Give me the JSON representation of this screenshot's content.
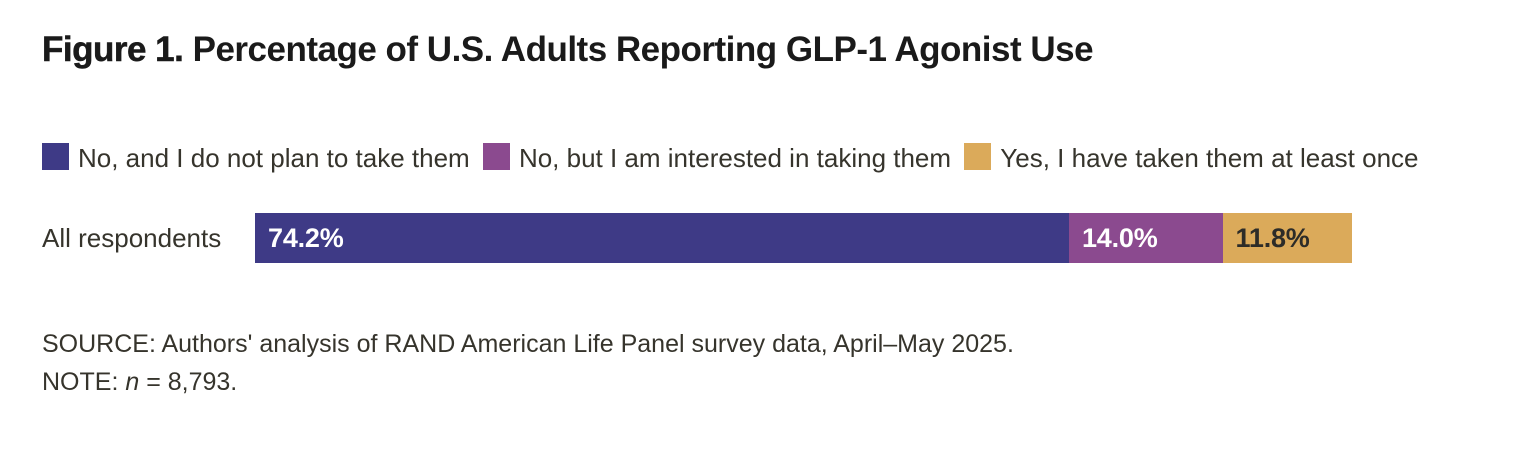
{
  "figure": {
    "label": "Figure 1.",
    "title": "Percentage of U.S. Adults Reporting GLP-1 Agonist Use"
  },
  "legend": [
    {
      "label": "No, and I do not plan to take them",
      "color": "#3e3a86"
    },
    {
      "label": "No, but I am interested in taking them",
      "color": "#8b4a8f"
    },
    {
      "label": "Yes, I have taken them at least once",
      "color": "#dbaa5a"
    }
  ],
  "chart_data": {
    "type": "bar",
    "orientation": "horizontal",
    "stacked": true,
    "title": "Figure 1. Percentage of U.S. Adults Reporting GLP-1 Agonist Use",
    "categories": [
      "All respondents"
    ],
    "series": [
      {
        "name": "No, and I do not plan to take them",
        "values": [
          74.2
        ],
        "color": "#3e3a86",
        "label": "74.2%",
        "label_color": "#ffffff"
      },
      {
        "name": "No, but I am interested in taking them",
        "values": [
          14.0
        ],
        "color": "#8b4a8f",
        "label": "14.0%",
        "label_color": "#ffffff"
      },
      {
        "name": "Yes, I have taken them at least once",
        "values": [
          11.8
        ],
        "color": "#dbaa5a",
        "label": "11.8%",
        "label_color": "#2d2c28"
      }
    ],
    "xlim": [
      0,
      100
    ],
    "legend_position": "top",
    "grid": false
  },
  "footer": {
    "source": "SOURCE: Authors' analysis of RAND American Life Panel survey data, April–May 2025.",
    "note_prefix": "NOTE: ",
    "note_variable": "n",
    "note_suffix": " = 8,793."
  }
}
